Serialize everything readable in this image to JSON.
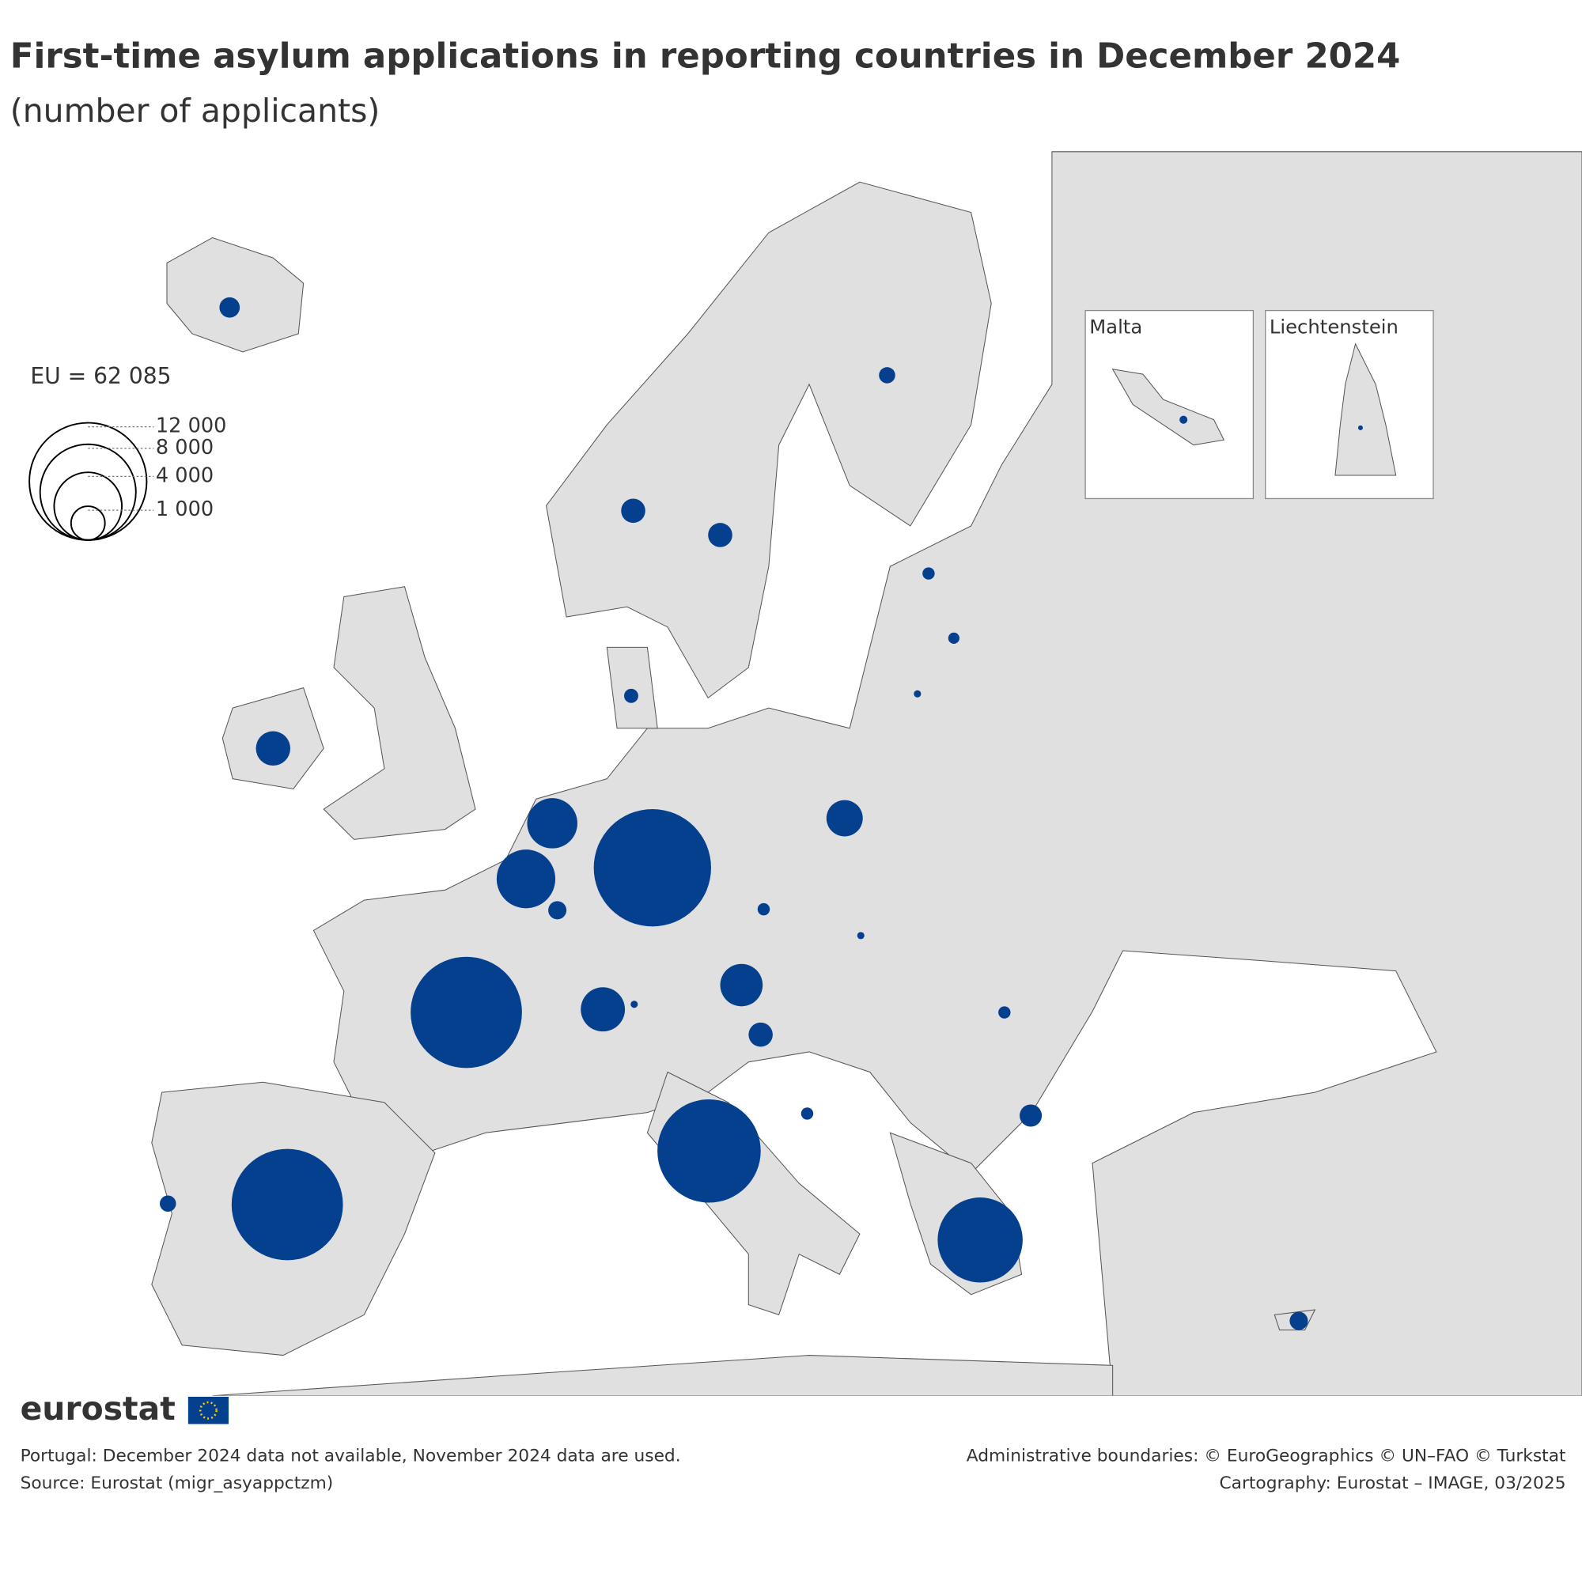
{
  "title": "First-time asylum applications in reporting countries in December 2024",
  "subtitle": "(number of applicants)",
  "legend": {
    "label": "EU = 62 085",
    "sizes": [
      {
        "value": 12000,
        "label": "12 000"
      },
      {
        "value": 8000,
        "label": "8 000"
      },
      {
        "value": 4000,
        "label": "4 000"
      },
      {
        "value": 1000,
        "label": "1 000"
      }
    ]
  },
  "bubble_color": "#05408f",
  "bubbles": [
    12000,
    10800,
    10800,
    9300,
    6300,
    2200,
    3000,
    1570,
    1700,
    1030,
    1150,
    510,
    510,
    360,
    230,
    175,
    130,
    110,
    45,
    290,
    130,
    45,
    510,
    130,
    130,
    430,
    290,
    230,
    45
  ],
  "insets": [
    {
      "title": "Malta",
      "bubble": 55
    },
    {
      "title": "Liechtenstein",
      "bubble": 20
    }
  ],
  "footnotes": [
    "Portugal: December 2024 data not available, November 2024 data are used.",
    "Source: Eurostat (migr_asyappctzm)"
  ],
  "credits": [
    "Administrative boundaries: © EuroGeographics © UN–FAO © Turkstat",
    "Cartography: Eurostat – IMAGE, 03/2025"
  ],
  "logo": "eurostat"
}
